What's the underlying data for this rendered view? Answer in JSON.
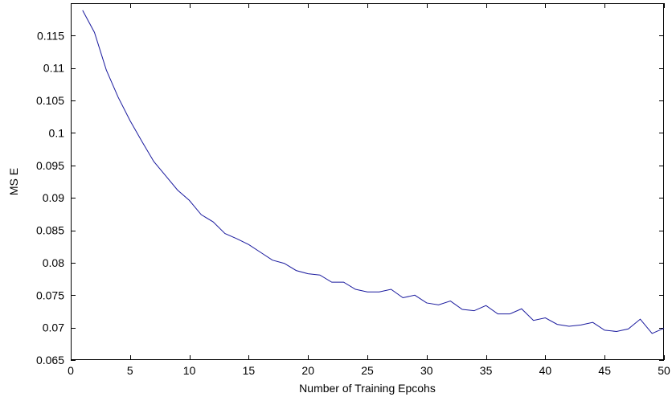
{
  "chart_data": {
    "type": "line",
    "title": "",
    "xlabel": "Number of Training Epcohs",
    "ylabel": "MS E",
    "xlim": [
      0,
      50
    ],
    "ylim": [
      0.065,
      0.12
    ],
    "grid": false,
    "line_color": "#1a1a9e",
    "xticks": [
      0,
      5,
      10,
      15,
      20,
      25,
      30,
      35,
      40,
      45,
      50
    ],
    "xtick_labels": [
      "0",
      "5",
      "10",
      "15",
      "20",
      "25",
      "30",
      "35",
      "40",
      "45",
      "50"
    ],
    "yticks": [
      0.065,
      0.07,
      0.075,
      0.08,
      0.085,
      0.09,
      0.095,
      0.1,
      0.105,
      0.11,
      0.115
    ],
    "ytick_labels": [
      "0.065",
      "0.07",
      "0.075",
      "0.08",
      "0.085",
      "0.09",
      "0.095",
      "0.1",
      "0.105",
      "0.11",
      "0.115"
    ],
    "series": [
      {
        "x": [
          1,
          2,
          3,
          4,
          5,
          6,
          7,
          8,
          9,
          10,
          11,
          12,
          13,
          14,
          15,
          16,
          17,
          18,
          19,
          20,
          21,
          22,
          23,
          24,
          25,
          26,
          27,
          28,
          29,
          30,
          31,
          32,
          33,
          34,
          35,
          36,
          37,
          38,
          39,
          40,
          41,
          42,
          43,
          44,
          45,
          46,
          47,
          48,
          49,
          50
        ],
        "values": [
          0.1189,
          0.1155,
          0.1097,
          0.1055,
          0.1019,
          0.0987,
          0.0956,
          0.0934,
          0.0912,
          0.0896,
          0.0874,
          0.0863,
          0.0845,
          0.0837,
          0.0828,
          0.0816,
          0.0804,
          0.0799,
          0.0788,
          0.0783,
          0.0781,
          0.077,
          0.077,
          0.0759,
          0.0755,
          0.0755,
          0.0759,
          0.0746,
          0.075,
          0.0738,
          0.0735,
          0.0741,
          0.0728,
          0.0726,
          0.0734,
          0.0721,
          0.0721,
          0.0729,
          0.0711,
          0.0715,
          0.0705,
          0.0702,
          0.0704,
          0.0708,
          0.0696,
          0.0694,
          0.0698,
          0.0713,
          0.0691,
          0.0699
        ]
      }
    ]
  }
}
